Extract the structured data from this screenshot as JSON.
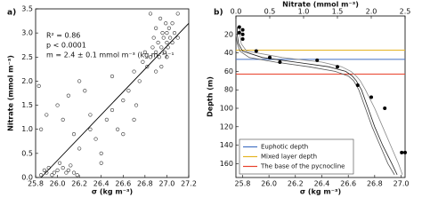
{
  "chart_data": [
    {
      "type": "scatter",
      "panel_label": "a)",
      "xlabel": "σ (kg m⁻³)",
      "ylabel": "Nitrate (mmol m⁻³)",
      "annotations": [
        "R² = 0.86",
        "p < 0.0001",
        "m = 2.4 ± 0.1 mmol m⁻³ (kg m⁻³)⁻¹"
      ],
      "color": "#333333",
      "x": [
        25.85,
        25.88,
        25.9,
        25.92,
        25.95,
        25.97,
        26.0,
        26.02,
        26.05,
        26.08,
        26.1,
        26.12,
        26.15,
        26.18,
        25.83,
        25.85,
        25.9,
        26.0,
        26.05,
        26.1,
        26.2,
        26.25,
        26.3,
        26.35,
        26.4,
        26.45,
        26.5,
        26.55,
        26.6,
        26.65,
        26.7,
        26.72,
        26.75,
        26.78,
        26.8,
        26.82,
        26.85,
        26.87,
        26.88,
        26.9,
        26.9,
        26.92,
        26.93,
        26.94,
        26.95,
        26.96,
        26.97,
        26.98,
        26.99,
        27.0,
        27.0,
        27.01,
        27.02,
        27.03,
        27.05,
        27.05,
        27.07,
        27.1,
        27.1,
        26.85,
        26.6,
        26.7,
        26.5,
        26.3,
        26.4,
        26.2,
        26.15,
        26.9,
        26.95,
        27.0
      ],
      "values": [
        0.05,
        0.15,
        0.1,
        0.2,
        0.05,
        0.1,
        0.15,
        0.3,
        0.2,
        0.1,
        0.15,
        0.25,
        0.1,
        0.05,
        1.9,
        1.0,
        1.3,
        1.5,
        1.2,
        1.7,
        2.0,
        1.8,
        1.0,
        0.8,
        0.5,
        1.2,
        1.4,
        1.0,
        1.6,
        1.8,
        2.2,
        1.5,
        2.0,
        2.4,
        2.6,
        2.3,
        2.5,
        2.7,
        2.9,
        2.6,
        3.1,
        2.8,
        2.5,
        3.3,
        2.7,
        3.0,
        2.9,
        2.6,
        3.2,
        2.8,
        3.0,
        2.7,
        3.1,
        2.9,
        3.2,
        2.8,
        3.0,
        3.4,
        2.9,
        3.4,
        0.9,
        1.2,
        2.1,
        1.3,
        0.3,
        0.6,
        0.9,
        2.2,
        2.3,
        2.5
      ],
      "fit": {
        "x": [
          25.85,
          27.2
        ],
        "values": [
          0,
          3.2
        ],
        "color": "#000000"
      },
      "xlim": [
        25.8,
        27.2
      ],
      "xticks": [
        25.8,
        {
          "value": 26,
          "label": "26.0"
        },
        26.2,
        26.4,
        26.6,
        26.8,
        {
          "value": 27,
          "label": "27.0"
        },
        27.2
      ],
      "ylim": [
        0,
        3.5
      ],
      "yticks": [
        {
          "value": 0,
          "label": "0.0"
        },
        0.5,
        {
          "value": 1,
          "label": "1.0"
        },
        1.5,
        {
          "value": 2,
          "label": "2.0"
        },
        2.5,
        {
          "value": 3,
          "label": "3.0"
        },
        3.5
      ]
    },
    {
      "type": "profile",
      "panel_label": "b)",
      "xlabel": "σ (kg m⁻³)",
      "x2label": "Nitrate (mmol m⁻³)",
      "ylabel": "Depth (m)",
      "xlim": [
        25.75,
        27.03
      ],
      "xticks": [
        25.8,
        {
          "value": 26,
          "label": "26.0"
        },
        26.2,
        26.4,
        26.6,
        26.8,
        {
          "value": 27,
          "label": "27.0"
        }
      ],
      "x2lim": [
        0,
        2.5
      ],
      "x2ticks": [
        {
          "value": 0,
          "label": "0.0"
        },
        0.5,
        {
          "value": 1,
          "label": "1.0"
        },
        1.5,
        {
          "value": 2,
          "label": "2.0"
        },
        2.5
      ],
      "ylim": [
        0,
        175
      ],
      "y_inverted": true,
      "yticks": [
        20,
        40,
        60,
        80,
        100,
        120,
        140,
        160
      ],
      "series": [
        {
          "color": "#222222",
          "x": [
            25.76,
            25.76,
            25.77,
            25.8,
            25.95,
            26.2,
            26.45,
            26.58,
            26.63,
            26.66,
            26.7,
            26.75,
            26.8,
            26.86,
            26.93,
            26.97
          ],
          "values": [
            12,
            20,
            30,
            38,
            45,
            50,
            55,
            60,
            65,
            70,
            80,
            100,
            120,
            140,
            160,
            172
          ]
        },
        {
          "color": "#555555",
          "x": [
            25.75,
            25.75,
            25.76,
            25.78,
            25.85,
            26.05,
            26.3,
            26.5,
            26.6,
            26.64,
            26.68,
            26.73,
            26.78,
            26.84,
            26.9,
            26.95
          ],
          "values": [
            12,
            20,
            30,
            38,
            45,
            50,
            55,
            60,
            65,
            70,
            80,
            100,
            120,
            140,
            160,
            172
          ]
        },
        {
          "color": "#888888",
          "x": [
            25.78,
            25.78,
            25.79,
            25.83,
            26.1,
            26.4,
            26.55,
            26.62,
            26.66,
            26.69,
            26.73,
            26.8,
            26.86,
            26.92,
            26.98,
            27.01
          ],
          "values": [
            12,
            20,
            30,
            38,
            45,
            50,
            55,
            60,
            65,
            70,
            80,
            100,
            120,
            140,
            160,
            172
          ]
        }
      ],
      "points": {
        "color": "#000000",
        "x2": [
          0.05,
          0.1,
          0.05,
          0.1,
          0.1,
          0.3,
          0.5,
          0.65,
          1.2,
          1.5,
          1.8,
          2.0,
          2.2,
          2.45,
          2.5
        ],
        "values": [
          12,
          15,
          18,
          20,
          25,
          38,
          45,
          50,
          48,
          55,
          75,
          88,
          100,
          148,
          148
        ]
      },
      "hlines": [
        {
          "name": "Euphotic depth",
          "value": 47,
          "color": "#4472c4"
        },
        {
          "name": "Mixed layer depth",
          "value": 37,
          "color": "#e6b422"
        },
        {
          "name": "The base of the pycnocline",
          "value": 63,
          "color": "#e8402a"
        }
      ],
      "legend": "lower left"
    }
  ]
}
